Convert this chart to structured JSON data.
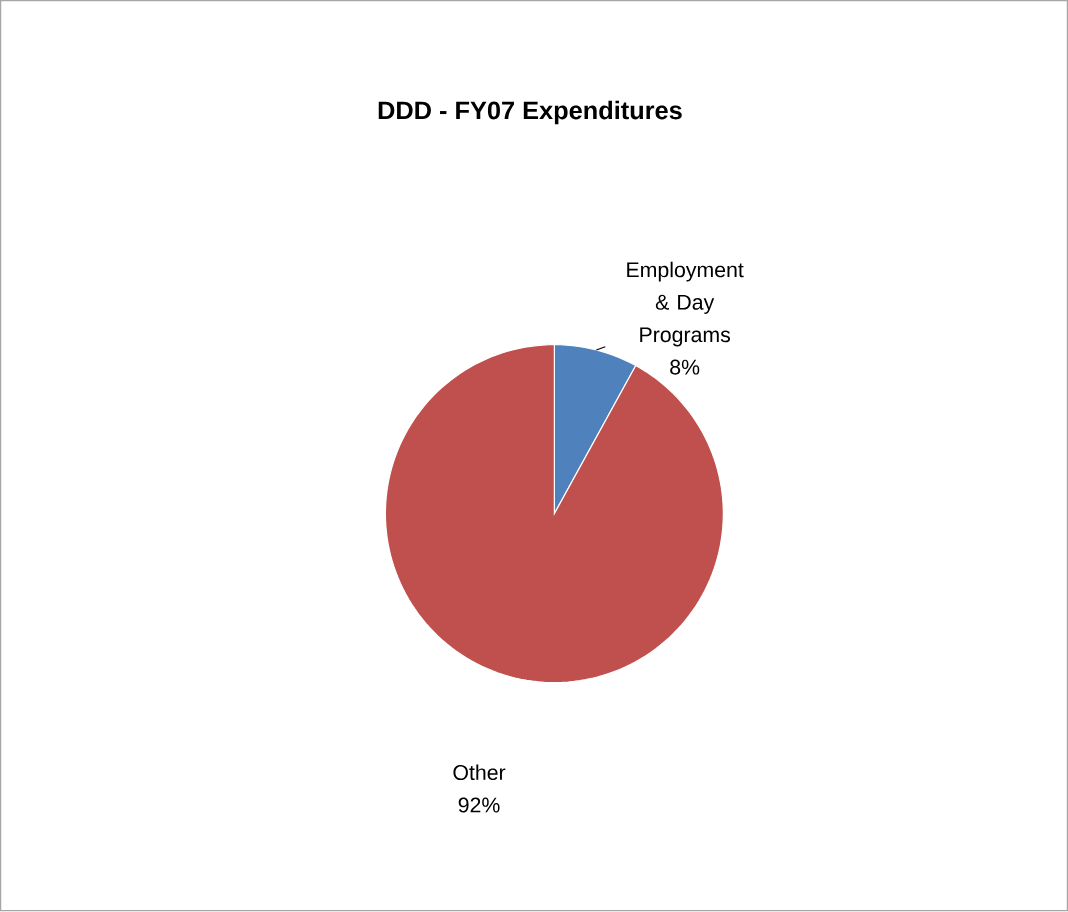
{
  "chart_data": {
    "type": "pie",
    "title": "DDD - FY07 Expenditures",
    "categories": [
      "Employment & Day Programs",
      "Other"
    ],
    "values": [
      8,
      92
    ],
    "value_labels": [
      "8%",
      "92%"
    ],
    "colors": [
      "#4f81bd",
      "#c0504d"
    ]
  }
}
